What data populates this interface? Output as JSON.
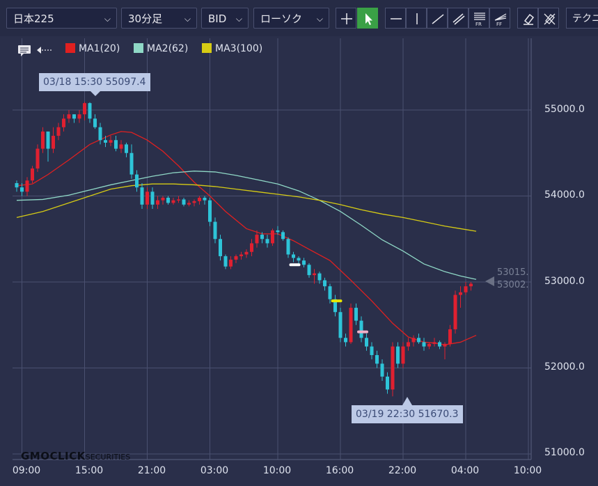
{
  "toolbar": {
    "symbol": "日本225",
    "interval": "30分足",
    "price_type": "BID",
    "chart_style": "ローソク",
    "tech_label": "テクニ",
    "tools": [
      "crosshair-tool",
      "pointer-tool",
      "horizontal-line-tool",
      "vertical-line-tool",
      "trend-line-tool",
      "channel-tool",
      "fibonacci-retracement-tool",
      "fibonacci-fan-tool",
      "eraser-tool",
      "delete-all-tool"
    ]
  },
  "legend": [
    {
      "label": "MA1(20)",
      "color": "#e02020"
    },
    {
      "label": "MA2(62)",
      "color": "#8fd8c6"
    },
    {
      "label": "MA3(100)",
      "color": "#d6cb14"
    }
  ],
  "high_tip": "03/18 15:30 55097.4",
  "low_tip": "03/19 22:30 51670.3",
  "ma_values": [
    "53015.",
    "53002."
  ],
  "logo": {
    "main": "GMOCLICK",
    "sub": "SECURITIES"
  },
  "chart_data": {
    "type": "candlestick",
    "title": "",
    "ylim": [
      50900,
      55950
    ],
    "yticks": [
      "55000.0",
      "54000.0",
      "53000.0",
      "52000.0",
      "51000.0"
    ],
    "ytick_values": [
      55000,
      54000,
      53000,
      52000,
      51000
    ],
    "xticks": [
      "09:00",
      "15:00",
      "21:00",
      "03:00",
      "10:00",
      "16:00",
      "22:00",
      "04:00",
      "10:00"
    ],
    "xtick_index": [
      1,
      13,
      25,
      37,
      50,
      62,
      74,
      86,
      98
    ],
    "grid": true,
    "up_color": "#e02030",
    "down_color": "#2ec4d8",
    "candles": [
      [
        54150,
        54180,
        54050,
        54100
      ],
      [
        54100,
        54150,
        54000,
        54050
      ],
      [
        54050,
        54220,
        54000,
        54180
      ],
      [
        54180,
        54350,
        54150,
        54320
      ],
      [
        54320,
        54600,
        54280,
        54550
      ],
      [
        54550,
        54800,
        54500,
        54750
      ],
      [
        54750,
        54720,
        54400,
        54550
      ],
      [
        54550,
        54800,
        54500,
        54700
      ],
      [
        54700,
        54850,
        54650,
        54800
      ],
      [
        54800,
        54950,
        54750,
        54900
      ],
      [
        54900,
        55000,
        54850,
        54950
      ],
      [
        54950,
        54950,
        54850,
        54900
      ],
      [
        54900,
        55000,
        54850,
        54950
      ],
      [
        54950,
        55097,
        54880,
        55080
      ],
      [
        55080,
        55090,
        54850,
        54900
      ],
      [
        54900,
        54950,
        54780,
        54800
      ],
      [
        54800,
        54850,
        54600,
        54650
      ],
      [
        54650,
        54700,
        54570,
        54620
      ],
      [
        54620,
        54700,
        54580,
        54650
      ],
      [
        54650,
        54700,
        54520,
        54550
      ],
      [
        54550,
        54650,
        54500,
        54600
      ],
      [
        54600,
        54620,
        54450,
        54500
      ],
      [
        54500,
        54600,
        54200,
        54250
      ],
      [
        54250,
        54300,
        54050,
        54100
      ],
      [
        54100,
        54150,
        53850,
        53900
      ],
      [
        53900,
        54100,
        53850,
        54050
      ],
      [
        54050,
        54100,
        53850,
        53900
      ],
      [
        53900,
        54000,
        53850,
        53950
      ],
      [
        53950,
        54000,
        53900,
        53980
      ],
      [
        53980,
        54000,
        53900,
        53920
      ],
      [
        53920,
        53980,
        53900,
        53950
      ],
      [
        53950,
        54000,
        53920,
        53960
      ],
      [
        53960,
        53980,
        53880,
        53900
      ],
      [
        53900,
        53950,
        53880,
        53920
      ],
      [
        53920,
        53960,
        53880,
        53940
      ],
      [
        53940,
        54000,
        53900,
        53980
      ],
      [
        53980,
        54000,
        53900,
        53950
      ],
      [
        53950,
        53980,
        53650,
        53700
      ],
      [
        53700,
        53750,
        53450,
        53500
      ],
      [
        53500,
        53550,
        53250,
        53300
      ],
      [
        53300,
        53320,
        53150,
        53180
      ],
      [
        53180,
        53300,
        53150,
        53260
      ],
      [
        53260,
        53320,
        53220,
        53300
      ],
      [
        53300,
        53350,
        53260,
        53320
      ],
      [
        53320,
        53380,
        53280,
        53350
      ],
      [
        53350,
        53500,
        53300,
        53450
      ],
      [
        53450,
        53600,
        53400,
        53550
      ],
      [
        53550,
        53580,
        53450,
        53500
      ],
      [
        53500,
        53550,
        53400,
        53450
      ],
      [
        53450,
        53620,
        53420,
        53600
      ],
      [
        53600,
        53650,
        53550,
        53580
      ],
      [
        53580,
        53600,
        53480,
        53500
      ],
      [
        53500,
        53520,
        53280,
        53320
      ],
      [
        53320,
        53350,
        53230,
        53280
      ],
      [
        53280,
        53300,
        53200,
        53250
      ],
      [
        53250,
        53280,
        53170,
        53200
      ],
      [
        53200,
        53220,
        53050,
        53080
      ],
      [
        53080,
        53150,
        52980,
        53100
      ],
      [
        53100,
        53120,
        52980,
        53020
      ],
      [
        53020,
        53050,
        52900,
        52950
      ],
      [
        52950,
        52980,
        52750,
        52800
      ],
      [
        52800,
        52850,
        52600,
        52650
      ],
      [
        52650,
        52700,
        52300,
        52350
      ],
      [
        52350,
        52400,
        52250,
        52300
      ],
      [
        52300,
        52750,
        52280,
        52700
      ],
      [
        52700,
        52750,
        52500,
        52550
      ],
      [
        52550,
        52600,
        52300,
        52350
      ],
      [
        52350,
        52400,
        52200,
        52250
      ],
      [
        52250,
        52300,
        52100,
        52150
      ],
      [
        52150,
        52200,
        52000,
        52050
      ],
      [
        52050,
        52100,
        51850,
        51900
      ],
      [
        51900,
        51950,
        51700,
        51750
      ],
      [
        51750,
        52300,
        51670,
        52250
      ],
      [
        52250,
        52300,
        52000,
        52050
      ],
      [
        52050,
        52300,
        52000,
        52250
      ],
      [
        52250,
        52350,
        52200,
        52300
      ],
      [
        52300,
        52380,
        52250,
        52350
      ],
      [
        52350,
        52400,
        52280,
        52300
      ],
      [
        52300,
        52350,
        52200,
        52250
      ],
      [
        52250,
        52300,
        52220,
        52280
      ],
      [
        52280,
        52350,
        52250,
        52300
      ],
      [
        52300,
        52320,
        52220,
        52250
      ],
      [
        52250,
        52300,
        52100,
        52280
      ],
      [
        52280,
        52500,
        52250,
        52450
      ],
      [
        52450,
        52900,
        52400,
        52850
      ],
      [
        52850,
        52950,
        52700,
        52880
      ],
      [
        52880,
        53000,
        52850,
        52950
      ],
      [
        52950,
        53000,
        52900,
        52980
      ]
    ],
    "series": [
      {
        "name": "MA1(20)",
        "color": "#e02020",
        "values": [
          [
            0,
            54120
          ],
          [
            3,
            54140
          ],
          [
            6,
            54250
          ],
          [
            10,
            54420
          ],
          [
            14,
            54600
          ],
          [
            18,
            54710
          ],
          [
            20,
            54750
          ],
          [
            22,
            54740
          ],
          [
            25,
            54650
          ],
          [
            28,
            54520
          ],
          [
            31,
            54350
          ],
          [
            34,
            54160
          ],
          [
            37,
            54000
          ],
          [
            40,
            53820
          ],
          [
            44,
            53620
          ],
          [
            47,
            53560
          ],
          [
            50,
            53560
          ],
          [
            53,
            53480
          ],
          [
            56,
            53380
          ],
          [
            60,
            53250
          ],
          [
            64,
            53020
          ],
          [
            68,
            52780
          ],
          [
            72,
            52520
          ],
          [
            75,
            52360
          ],
          [
            78,
            52300
          ],
          [
            80,
            52290
          ],
          [
            82,
            52270
          ],
          [
            85,
            52300
          ],
          [
            88,
            52380
          ]
        ]
      },
      {
        "name": "MA2(62)",
        "color": "#8fd8c6",
        "values": [
          [
            0,
            53950
          ],
          [
            5,
            53960
          ],
          [
            10,
            54010
          ],
          [
            14,
            54070
          ],
          [
            18,
            54130
          ],
          [
            22,
            54180
          ],
          [
            26,
            54230
          ],
          [
            30,
            54270
          ],
          [
            34,
            54290
          ],
          [
            38,
            54280
          ],
          [
            42,
            54240
          ],
          [
            46,
            54190
          ],
          [
            50,
            54140
          ],
          [
            54,
            54060
          ],
          [
            58,
            53950
          ],
          [
            62,
            53820
          ],
          [
            66,
            53660
          ],
          [
            70,
            53490
          ],
          [
            74,
            53360
          ],
          [
            78,
            53210
          ],
          [
            82,
            53120
          ],
          [
            85,
            53070
          ],
          [
            88,
            53030
          ]
        ]
      },
      {
        "name": "MA3(100)",
        "color": "#d6cb14",
        "values": [
          [
            0,
            53750
          ],
          [
            5,
            53820
          ],
          [
            10,
            53920
          ],
          [
            14,
            54000
          ],
          [
            18,
            54080
          ],
          [
            22,
            54120
          ],
          [
            26,
            54140
          ],
          [
            30,
            54140
          ],
          [
            34,
            54130
          ],
          [
            38,
            54110
          ],
          [
            42,
            54080
          ],
          [
            46,
            54050
          ],
          [
            50,
            54020
          ],
          [
            54,
            53990
          ],
          [
            58,
            53950
          ],
          [
            62,
            53900
          ],
          [
            66,
            53840
          ],
          [
            70,
            53790
          ],
          [
            74,
            53750
          ],
          [
            78,
            53700
          ],
          [
            82,
            53650
          ],
          [
            85,
            53620
          ],
          [
            88,
            53590
          ]
        ]
      }
    ],
    "markers": [
      {
        "index": 53,
        "price": 53200,
        "color": "#ffffff"
      },
      {
        "index": 61,
        "price": 52780,
        "color": "#e6e600"
      },
      {
        "index": 66,
        "price": 52420,
        "color": "#f0b0c8"
      }
    ]
  }
}
